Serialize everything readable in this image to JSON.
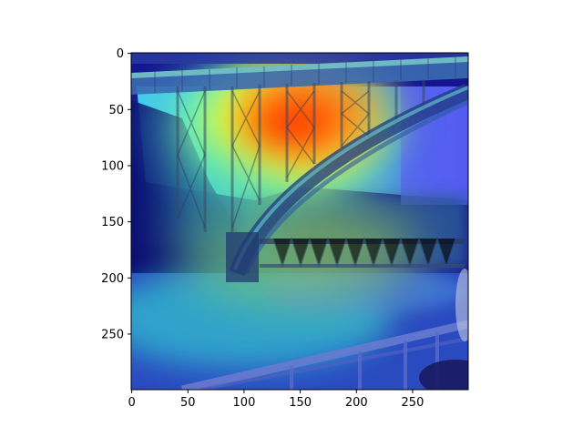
{
  "chart_data": {
    "type": "heatmap",
    "title": "",
    "xlabel": "",
    "ylabel": "",
    "xlim": [
      0,
      299
    ],
    "ylim": [
      299,
      0
    ],
    "x_ticks": [
      0,
      50,
      100,
      150,
      200,
      250
    ],
    "y_ticks": [
      0,
      50,
      100,
      150,
      200,
      250
    ],
    "x_tick_labels": [
      "0",
      "50",
      "100",
      "150",
      "200",
      "250"
    ],
    "y_tick_labels": [
      "0",
      "50",
      "100",
      "150",
      "200",
      "250"
    ],
    "colormap": "jet",
    "background_image": "photo of a steel arch bridge over a river with trees and a railing in the foreground",
    "hot_regions": [
      {
        "x": 145,
        "y": 65,
        "intensity": 1.0
      },
      {
        "x": 155,
        "y": 180,
        "intensity": 0.45
      },
      {
        "x": 80,
        "y": 120,
        "intensity": 0.5
      }
    ]
  },
  "colors": {
    "background": "#ffffff",
    "axis": "#000000",
    "jet_low": "#00007f",
    "jet_mid": "#7fff7f",
    "jet_high": "#ff0000"
  }
}
